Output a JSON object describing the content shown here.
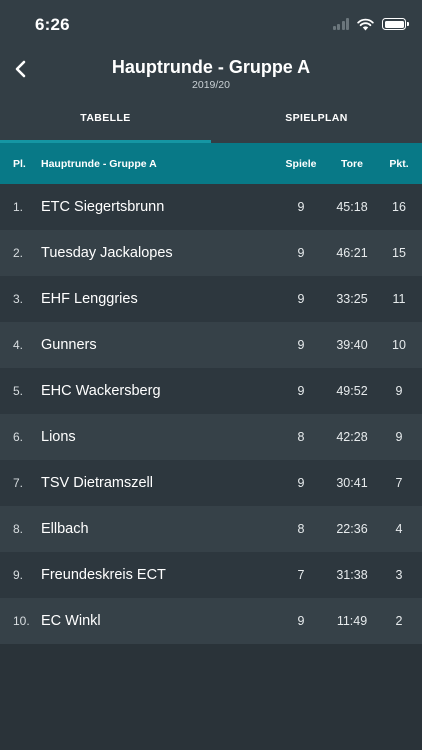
{
  "status_bar": {
    "time": "6:26"
  },
  "nav": {
    "title": "Hauptrunde - Gruppe A",
    "subtitle": "2019/20"
  },
  "tabs": [
    {
      "label": "TABELLE",
      "active": true
    },
    {
      "label": "SPIELPLAN",
      "active": false
    }
  ],
  "table": {
    "headers": {
      "place": "Pl.",
      "team": "Hauptrunde - Gruppe A",
      "games": "Spiele",
      "goals": "Tore",
      "points": "Pkt."
    },
    "rows": [
      {
        "place": "1.",
        "team": "ETC Siegertsbrunn",
        "games": "9",
        "goals": "45:18",
        "points": "16"
      },
      {
        "place": "2.",
        "team": "Tuesday Jackalopes",
        "games": "9",
        "goals": "46:21",
        "points": "15"
      },
      {
        "place": "3.",
        "team": "EHF Lenggries",
        "games": "9",
        "goals": "33:25",
        "points": "11"
      },
      {
        "place": "4.",
        "team": "Gunners",
        "games": "9",
        "goals": "39:40",
        "points": "10"
      },
      {
        "place": "5.",
        "team": "EHC Wackersberg",
        "games": "9",
        "goals": "49:52",
        "points": "9"
      },
      {
        "place": "6.",
        "team": "Lions",
        "games": "8",
        "goals": "42:28",
        "points": "9"
      },
      {
        "place": "7.",
        "team": "TSV Dietramszell",
        "games": "9",
        "goals": "30:41",
        "points": "7"
      },
      {
        "place": "8.",
        "team": "Ellbach",
        "games": "8",
        "goals": "22:36",
        "points": "4"
      },
      {
        "place": "9.",
        "team": "Freundeskreis ECT",
        "games": "7",
        "goals": "31:38",
        "points": "3"
      },
      {
        "place": "10.",
        "team": "EC Winkl",
        "games": "9",
        "goals": "11:49",
        "points": "2"
      }
    ]
  },
  "icons": {
    "back": "chevron-left-icon",
    "signal": "cellular-signal-icon",
    "wifi": "wifi-icon",
    "battery": "battery-icon"
  },
  "colors": {
    "accent": "#1596a3",
    "header_bg": "#087987",
    "top_bg": "#333e45",
    "row_odd": "#2d373e",
    "row_even": "#364148"
  }
}
